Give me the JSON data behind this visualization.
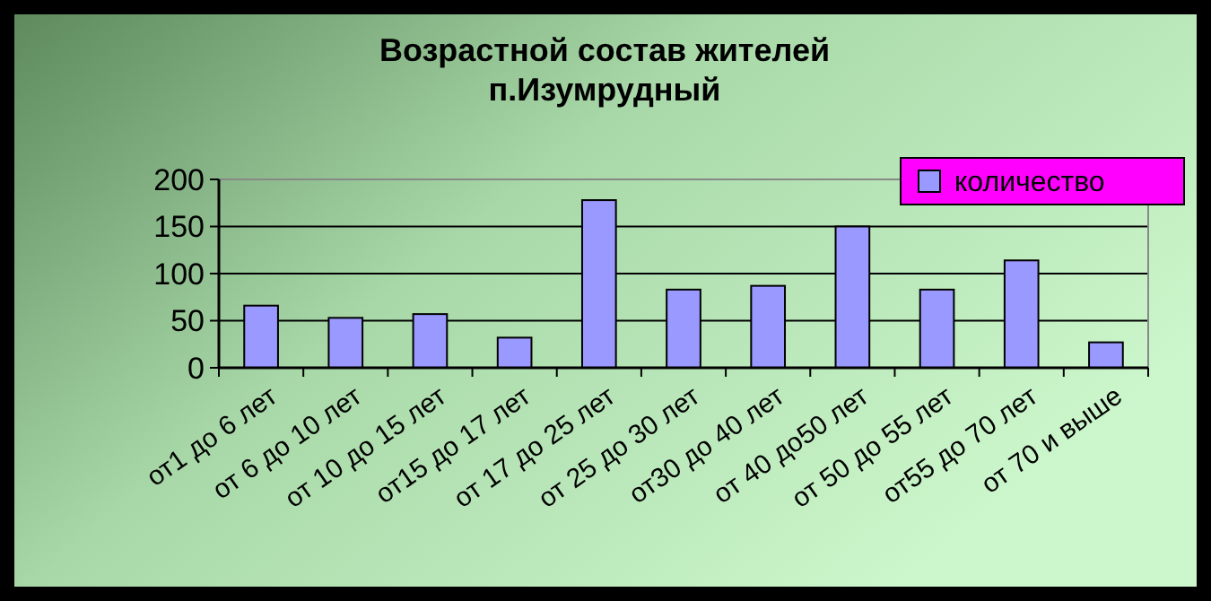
{
  "chart_data": {
    "type": "bar",
    "title": "Возрастной состав жителей п.Изумрудный",
    "categories": [
      "от1 до 6 лет",
      "от 6 до 10 лет",
      "от 10 до 15 лет",
      "от15 до 17 лет",
      "от 17 до 25 лет",
      "от 25 до 30 лет",
      "от30 до 40 лет",
      "от 40 до50 лет",
      "от 50 до 55 лет",
      "от55 до 70 лет",
      "от 70 и выше"
    ],
    "series": [
      {
        "name": "количество",
        "color": "#9999ff",
        "values": [
          66,
          53,
          57,
          32,
          178,
          83,
          87,
          150,
          83,
          114,
          27
        ]
      }
    ],
    "ylim": [
      0,
      200
    ],
    "yticks": [
      0,
      50,
      100,
      150,
      200
    ],
    "grid": "y",
    "legend": "top right"
  }
}
